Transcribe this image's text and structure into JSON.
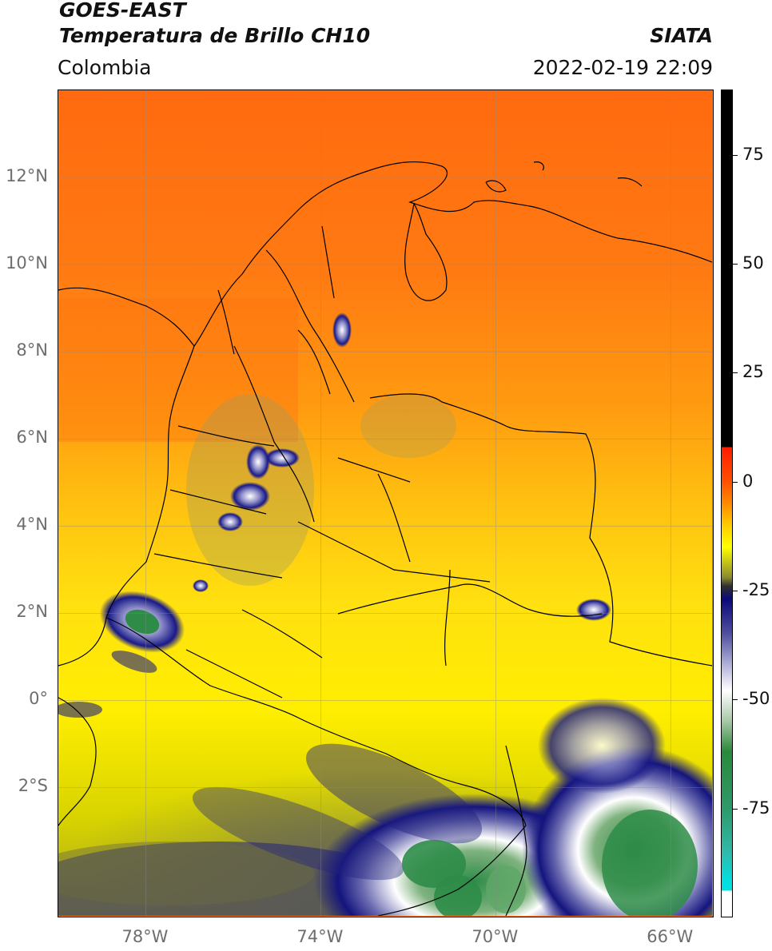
{
  "header": {
    "satellite": "GOES-EAST",
    "product": "Temperatura de Brillo CH10",
    "region": "Colombia",
    "agency": "SIATA",
    "datetime": "2022-02-19 22:09"
  },
  "map": {
    "lat_ticks": [
      "12°N",
      "10°N",
      "8°N",
      "6°N",
      "4°N",
      "2°N",
      "0°",
      "2°S"
    ],
    "lon_ticks": [
      "78°W",
      "74°W",
      "70°W",
      "66°W"
    ],
    "extent": {
      "lon_min": -80,
      "lon_max": -65,
      "lat_min": -5,
      "lat_max": 14
    }
  },
  "colorbar": {
    "ticks": [
      "75",
      "50",
      "25",
      "0",
      "-25",
      "-50",
      "-75"
    ],
    "tick_values": [
      75,
      50,
      25,
      0,
      -25,
      -50,
      -75
    ],
    "range": [
      -100,
      90
    ],
    "colors": {
      "black": "#000000",
      "red": "#ff1a00",
      "orange": "#ff8a00",
      "yellow": "#ffff00",
      "olive": "#8a8a30",
      "navy": "#0a0a7a",
      "white": "#ffffff",
      "green": "#2a8a3a",
      "cyan": "#00e0e0"
    }
  }
}
